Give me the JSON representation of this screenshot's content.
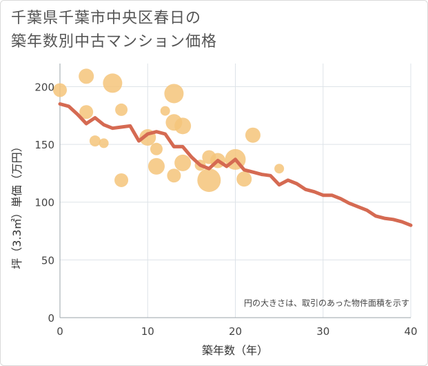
{
  "title_lines": [
    "千葉県千葉市中央区春日の",
    "築年数別中古マンション価格"
  ],
  "chart_data": {
    "type": "scatter",
    "title": "千葉県千葉市中央区春日の築年数別中古マンション価格",
    "xlabel": "築年数（年）",
    "ylabel": "坪（3.3㎡）単価（万円）",
    "xlim": [
      0,
      40
    ],
    "ylim": [
      0,
      220
    ],
    "xticks": [
      0,
      10,
      20,
      30,
      40
    ],
    "yticks": [
      0,
      50,
      100,
      150,
      200
    ],
    "grid": true,
    "note": "円の大きさは、取引のあった物件面積を示す",
    "colors": {
      "bubble": "#f4c47a",
      "line": "#d56a52",
      "grid": "#dde3e8"
    },
    "bubbles": [
      {
        "x": 0,
        "y": 197,
        "size": 10
      },
      {
        "x": 3,
        "y": 209,
        "size": 11
      },
      {
        "x": 3,
        "y": 178,
        "size": 10
      },
      {
        "x": 4,
        "y": 153,
        "size": 8
      },
      {
        "x": 5,
        "y": 151,
        "size": 7
      },
      {
        "x": 6,
        "y": 203,
        "size": 14
      },
      {
        "x": 7,
        "y": 180,
        "size": 9
      },
      {
        "x": 7,
        "y": 119,
        "size": 10
      },
      {
        "x": 10,
        "y": 156,
        "size": 12
      },
      {
        "x": 11,
        "y": 146,
        "size": 9
      },
      {
        "x": 11,
        "y": 131,
        "size": 12
      },
      {
        "x": 12,
        "y": 179,
        "size": 7
      },
      {
        "x": 13,
        "y": 194,
        "size": 14
      },
      {
        "x": 13,
        "y": 169,
        "size": 12
      },
      {
        "x": 13,
        "y": 123,
        "size": 10
      },
      {
        "x": 14,
        "y": 166,
        "size": 12
      },
      {
        "x": 14,
        "y": 134,
        "size": 12
      },
      {
        "x": 16,
        "y": 132,
        "size": 8
      },
      {
        "x": 17,
        "y": 139,
        "size": 10
      },
      {
        "x": 17,
        "y": 119,
        "size": 17
      },
      {
        "x": 18,
        "y": 136,
        "size": 11
      },
      {
        "x": 20,
        "y": 137,
        "size": 15
      },
      {
        "x": 21,
        "y": 120,
        "size": 11
      },
      {
        "x": 22,
        "y": 158,
        "size": 11
      },
      {
        "x": 25,
        "y": 129,
        "size": 7
      }
    ],
    "trend": {
      "x": [
        0,
        1,
        2,
        3,
        4,
        5,
        6,
        7,
        8,
        9,
        10,
        11,
        12,
        13,
        14,
        15,
        16,
        17,
        18,
        19,
        20,
        21,
        22,
        23,
        24,
        25,
        26,
        27,
        28,
        29,
        30,
        31,
        32,
        33,
        34,
        35,
        36,
        37,
        38,
        39,
        40
      ],
      "y": [
        185,
        183,
        176,
        168,
        173,
        167,
        164,
        165,
        166,
        153,
        159,
        161,
        159,
        148,
        148,
        139,
        132,
        129,
        136,
        131,
        137,
        128,
        126,
        124,
        123,
        115,
        119,
        116,
        111,
        109,
        106,
        106,
        103,
        99,
        96,
        93,
        88,
        86,
        85,
        83,
        80
      ]
    }
  }
}
